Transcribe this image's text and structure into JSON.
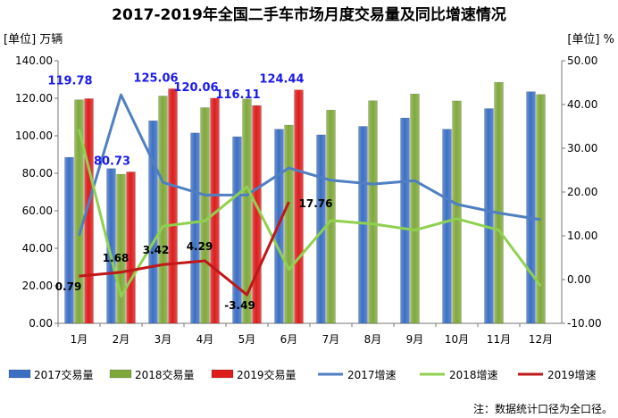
{
  "chart_data": {
    "type": "bar",
    "title": "2017-2019年全国二手车市场月度交易量及同比增速情况",
    "left_unit": "[单位] 万辆",
    "right_unit": "[单位] %",
    "categories": [
      "1月",
      "2月",
      "3月",
      "4月",
      "5月",
      "6月",
      "7月",
      "8月",
      "9月",
      "10月",
      "11月",
      "12月"
    ],
    "y_left": {
      "min": 0,
      "max": 140,
      "step": 20,
      "ticks": [
        "0.00",
        "20.00",
        "40.00",
        "60.00",
        "80.00",
        "100.00",
        "120.00",
        "140.00"
      ]
    },
    "y_right": {
      "min": -10,
      "max": 50,
      "step": 10,
      "ticks": [
        "-10.00",
        "0.00",
        "10.00",
        "20.00",
        "30.00",
        "40.00",
        "50.00"
      ]
    },
    "series_bars": [
      {
        "name": "2017交易量",
        "color": "#3b6fc4",
        "values": [
          88.5,
          82.5,
          108,
          101.5,
          99.5,
          103.5,
          100.5,
          105,
          109.5,
          103.5,
          114.5,
          123.5
        ]
      },
      {
        "name": "2018交易量",
        "color": "#7fa83a",
        "values": [
          119.2,
          79.5,
          121.2,
          115,
          119.6,
          105.7,
          113.7,
          118.7,
          122.3,
          118.6,
          128.5,
          122
        ]
      },
      {
        "name": "2019交易量",
        "color": "#dd1c1c",
        "values": [
          119.78,
          80.73,
          125.06,
          120.06,
          116.11,
          124.44,
          null,
          null,
          null,
          null,
          null,
          null
        ]
      }
    ],
    "series_lines": [
      {
        "name": "2017增速",
        "color": "#4f7fc2",
        "values": [
          10,
          42.2,
          22.2,
          19.3,
          19.3,
          25.5,
          22.7,
          21.8,
          22.6,
          17.2,
          15.2,
          13.7
        ]
      },
      {
        "name": "2018增速",
        "color": "#8fd14f",
        "values": [
          34.3,
          -3.8,
          12.2,
          13.4,
          21.2,
          2.3,
          13.5,
          12.7,
          11.3,
          13.9,
          11.3,
          -1.5
        ]
      },
      {
        "name": "2019增速",
        "color": "#c01818",
        "values": [
          0.79,
          1.68,
          3.42,
          4.29,
          -3.49,
          17.76,
          null,
          null,
          null,
          null,
          null,
          null
        ]
      }
    ],
    "bar_labels": [
      "119.78",
      "80.73",
      "125.06",
      "120.06",
      "116.11",
      "124.44"
    ],
    "line_labels": [
      "0.79",
      "1.68",
      "3.42",
      "4.29",
      "-3.49",
      "17.76"
    ],
    "legend": [
      "2017交易量",
      "2018交易量",
      "2019交易量",
      "2017增速",
      "2018增速",
      "2019增速"
    ],
    "legend_placement": "bottom",
    "note": "注：数据统计口径为全口径。",
    "grid": false
  }
}
